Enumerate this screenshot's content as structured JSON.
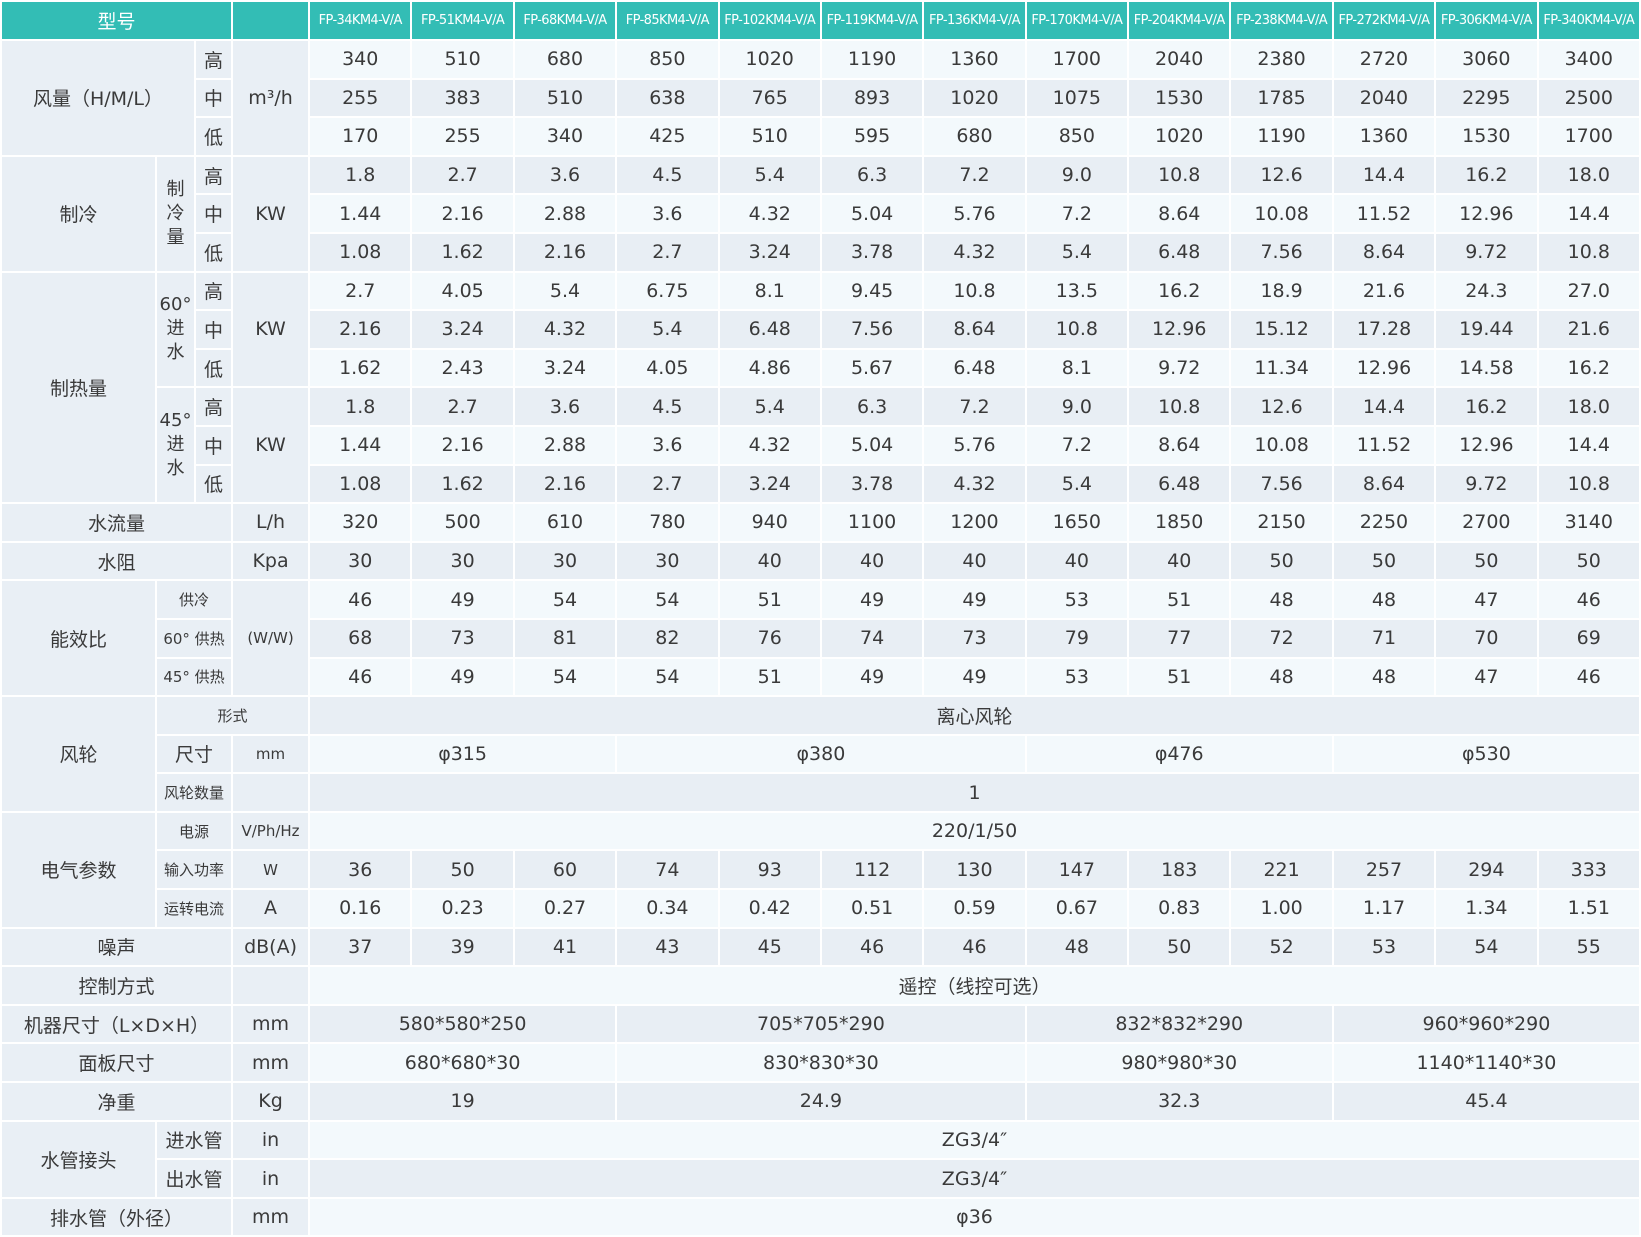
{
  "header": {
    "title": "型号",
    "models": [
      "FP-34KM4-V/A",
      "FP-51KM4-V/A",
      "FP-68KM4-V/A",
      "FP-85KM4-V/A",
      "FP-102KM4-V/A",
      "FP-119KM4-V/A",
      "FP-136KM4-V/A",
      "FP-170KM4-V/A",
      "FP-204KM4-V/A",
      "FP-238KM4-V/A",
      "FP-272KM4-V/A",
      "FP-306KM4-V/A",
      "FP-340KM4-V/A"
    ]
  },
  "levels": [
    "高",
    "中",
    "低"
  ],
  "airflow": {
    "label": "风量（H/M/L）",
    "unit": "m³/h",
    "values": [
      [
        "340",
        "510",
        "680",
        "850",
        "1020",
        "1190",
        "1360",
        "1700",
        "2040",
        "2380",
        "2720",
        "3060",
        "3400"
      ],
      [
        "255",
        "383",
        "510",
        "638",
        "765",
        "893",
        "1020",
        "1075",
        "1530",
        "1785",
        "2040",
        "2295",
        "2500"
      ],
      [
        "170",
        "255",
        "340",
        "425",
        "510",
        "595",
        "680",
        "850",
        "1020",
        "1190",
        "1360",
        "1530",
        "1700"
      ]
    ]
  },
  "cooling": {
    "label": "制冷",
    "sub": "制冷量",
    "unit": "KW",
    "values": [
      [
        "1.8",
        "2.7",
        "3.6",
        "4.5",
        "5.4",
        "6.3",
        "7.2",
        "9.0",
        "10.8",
        "12.6",
        "14.4",
        "16.2",
        "18.0"
      ],
      [
        "1.44",
        "2.16",
        "2.88",
        "3.6",
        "4.32",
        "5.04",
        "5.76",
        "7.2",
        "8.64",
        "10.08",
        "11.52",
        "12.96",
        "14.4"
      ],
      [
        "1.08",
        "1.62",
        "2.16",
        "2.7",
        "3.24",
        "3.78",
        "4.32",
        "5.4",
        "6.48",
        "7.56",
        "8.64",
        "9.72",
        "10.8"
      ]
    ]
  },
  "heating": {
    "label": "制热量",
    "groups": [
      {
        "sub": "60°进水",
        "unit": "KW",
        "values": [
          [
            "2.7",
            "4.05",
            "5.4",
            "6.75",
            "8.1",
            "9.45",
            "10.8",
            "13.5",
            "16.2",
            "18.9",
            "21.6",
            "24.3",
            "27.0"
          ],
          [
            "2.16",
            "3.24",
            "4.32",
            "5.4",
            "6.48",
            "7.56",
            "8.64",
            "10.8",
            "12.96",
            "15.12",
            "17.28",
            "19.44",
            "21.6"
          ],
          [
            "1.62",
            "2.43",
            "3.24",
            "4.05",
            "4.86",
            "5.67",
            "6.48",
            "8.1",
            "9.72",
            "11.34",
            "12.96",
            "14.58",
            "16.2"
          ]
        ]
      },
      {
        "sub": "45°进水",
        "unit": "KW",
        "values": [
          [
            "1.8",
            "2.7",
            "3.6",
            "4.5",
            "5.4",
            "6.3",
            "7.2",
            "9.0",
            "10.8",
            "12.6",
            "14.4",
            "16.2",
            "18.0"
          ],
          [
            "1.44",
            "2.16",
            "2.88",
            "3.6",
            "4.32",
            "5.04",
            "5.76",
            "7.2",
            "8.64",
            "10.08",
            "11.52",
            "12.96",
            "14.4"
          ],
          [
            "1.08",
            "1.62",
            "2.16",
            "2.7",
            "3.24",
            "3.78",
            "4.32",
            "5.4",
            "6.48",
            "7.56",
            "8.64",
            "9.72",
            "10.8"
          ]
        ]
      }
    ]
  },
  "water_flow": {
    "label": "水流量",
    "unit": "L/h",
    "values": [
      "320",
      "500",
      "610",
      "780",
      "940",
      "1100",
      "1200",
      "1650",
      "1850",
      "2150",
      "2250",
      "2700",
      "3140"
    ]
  },
  "water_resistance": {
    "label": "水阻",
    "unit": "Kpa",
    "values": [
      "30",
      "30",
      "30",
      "30",
      "40",
      "40",
      "40",
      "40",
      "40",
      "50",
      "50",
      "50",
      "50"
    ]
  },
  "efficiency": {
    "label": "能效比",
    "unit": "(W/W)",
    "rows": [
      {
        "sub": "供冷",
        "values": [
          "46",
          "49",
          "54",
          "54",
          "51",
          "49",
          "49",
          "53",
          "51",
          "48",
          "48",
          "47",
          "46"
        ]
      },
      {
        "sub": "60°  供热",
        "values": [
          "68",
          "73",
          "81",
          "82",
          "76",
          "74",
          "73",
          "79",
          "77",
          "72",
          "71",
          "70",
          "69"
        ]
      },
      {
        "sub": "45°  供热",
        "values": [
          "46",
          "49",
          "54",
          "54",
          "51",
          "49",
          "49",
          "53",
          "51",
          "48",
          "48",
          "47",
          "46"
        ]
      }
    ]
  },
  "fan": {
    "label": "风轮",
    "type": {
      "sub": "形式",
      "value": "离心风轮"
    },
    "size": {
      "sub": "尺寸",
      "unit": "mm",
      "groups": [
        {
          "value": "φ315",
          "span": 3
        },
        {
          "value": "φ380",
          "span": 4
        },
        {
          "value": "φ476",
          "span": 3
        },
        {
          "value": "φ530",
          "span": 3
        }
      ]
    },
    "count": {
      "sub": "风轮数量",
      "value": "1"
    }
  },
  "electrical": {
    "label": "电气参数",
    "power_supply": {
      "sub": "电源",
      "unit": "V/Ph/Hz",
      "value": "220/1/50"
    },
    "input_power": {
      "sub": "输入功率",
      "unit": "W",
      "values": [
        "36",
        "50",
        "60",
        "74",
        "93",
        "112",
        "130",
        "147",
        "183",
        "221",
        "257",
        "294",
        "333"
      ]
    },
    "current": {
      "sub": "运转电流",
      "unit": "A",
      "values": [
        "0.16",
        "0.23",
        "0.27",
        "0.34",
        "0.42",
        "0.51",
        "0.59",
        "0.67",
        "0.83",
        "1.00",
        "1.17",
        "1.34",
        "1.51"
      ]
    }
  },
  "noise": {
    "label": "噪声",
    "unit": "dB(A)",
    "values": [
      "37",
      "39",
      "41",
      "43",
      "45",
      "46",
      "46",
      "48",
      "50",
      "52",
      "53",
      "54",
      "55"
    ]
  },
  "control": {
    "label": "控制方式",
    "value": "遥控（线控可选）"
  },
  "unit_size": {
    "label": "机器尺寸（L×D×H）",
    "unit": "mm",
    "groups": [
      {
        "value": "580*580*250",
        "span": 3
      },
      {
        "value": "705*705*290",
        "span": 4
      },
      {
        "value": "832*832*290",
        "span": 3
      },
      {
        "value": "960*960*290",
        "span": 3
      }
    ]
  },
  "panel_size": {
    "label": "面板尺寸",
    "unit": "mm",
    "groups": [
      {
        "value": "680*680*30",
        "span": 3
      },
      {
        "value": "830*830*30",
        "span": 4
      },
      {
        "value": "980*980*30",
        "span": 3
      },
      {
        "value": "1140*1140*30",
        "span": 3
      }
    ]
  },
  "net_weight": {
    "label": "净重",
    "unit": "Kg",
    "groups": [
      {
        "value": "19",
        "span": 3
      },
      {
        "value": "24.9",
        "span": 4
      },
      {
        "value": "32.3",
        "span": 3
      },
      {
        "value": "45.4",
        "span": 3
      }
    ]
  },
  "pipe": {
    "label": "水管接头",
    "inlet": {
      "sub": "进水管",
      "unit": "in",
      "value": "ZG3/4″"
    },
    "outlet": {
      "sub": "出水管",
      "unit": "in",
      "value": "ZG3/4″"
    }
  },
  "drain": {
    "label": "排水管（外径）",
    "unit": "mm",
    "value": "φ36"
  },
  "colors": {
    "header": "#33bdb5",
    "label_bg": "#e9eff5",
    "row_light": "#f3f9fc",
    "row_dark": "#e8eef4"
  }
}
